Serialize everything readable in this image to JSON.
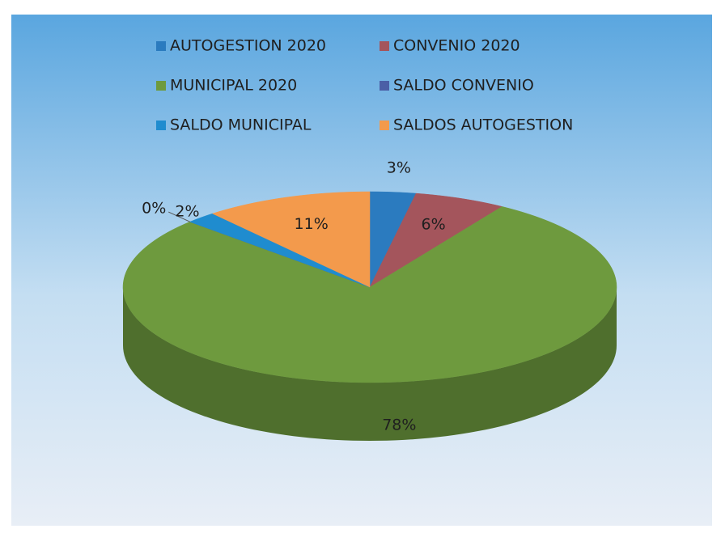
{
  "chart_data": {
    "type": "pie",
    "categories": [
      "AUTOGESTION 2020",
      "CONVENIO 2020",
      "MUNICIPAL 2020",
      "SALDO CONVENIO",
      "SALDO MUNICIPAL",
      "SALDOS AUTOGESTION"
    ],
    "values": [
      3,
      6,
      78,
      0,
      2,
      11
    ],
    "value_labels": [
      "3%",
      "6%",
      "78%",
      "0%",
      "2%",
      "11%"
    ],
    "colors": [
      "#2b7bbf",
      "#a4555c",
      "#6e9a3e",
      "#4b5fa6",
      "#1f8ccf",
      "#f39a4c"
    ],
    "legend": "top"
  }
}
